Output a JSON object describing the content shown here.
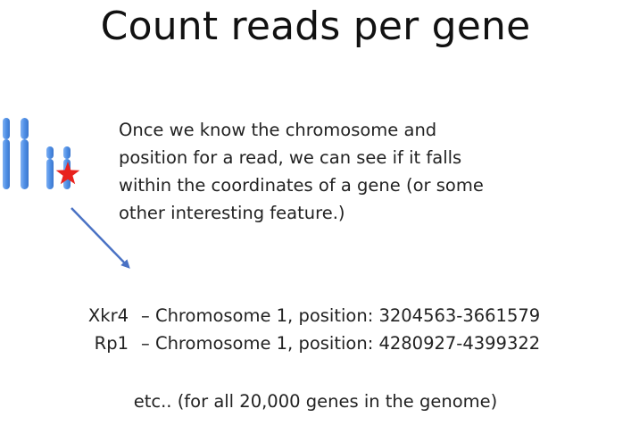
{
  "title": "Count reads per gene",
  "body_lines": [
    "Once we know the chromosome and",
    "position for a read, we can see if it falls",
    "within the coordinates of a gene (or some",
    "other interesting feature.)"
  ],
  "genes": [
    {
      "name": "Xkr4",
      "description": "– Chromosome 1, position: 3204563-3661579"
    },
    {
      "name": "Rp1",
      "description": "– Chromosome 1, position: 4280927-4399322"
    }
  ],
  "footer": "etc.. (for all 20,000 genes in the genome)",
  "colors": {
    "chromosome": "#4f8fe6",
    "star": "#e8211d",
    "arrow": "#4a72c4"
  },
  "icons": [
    "chromosome-icon",
    "star-icon",
    "arrow-icon"
  ]
}
